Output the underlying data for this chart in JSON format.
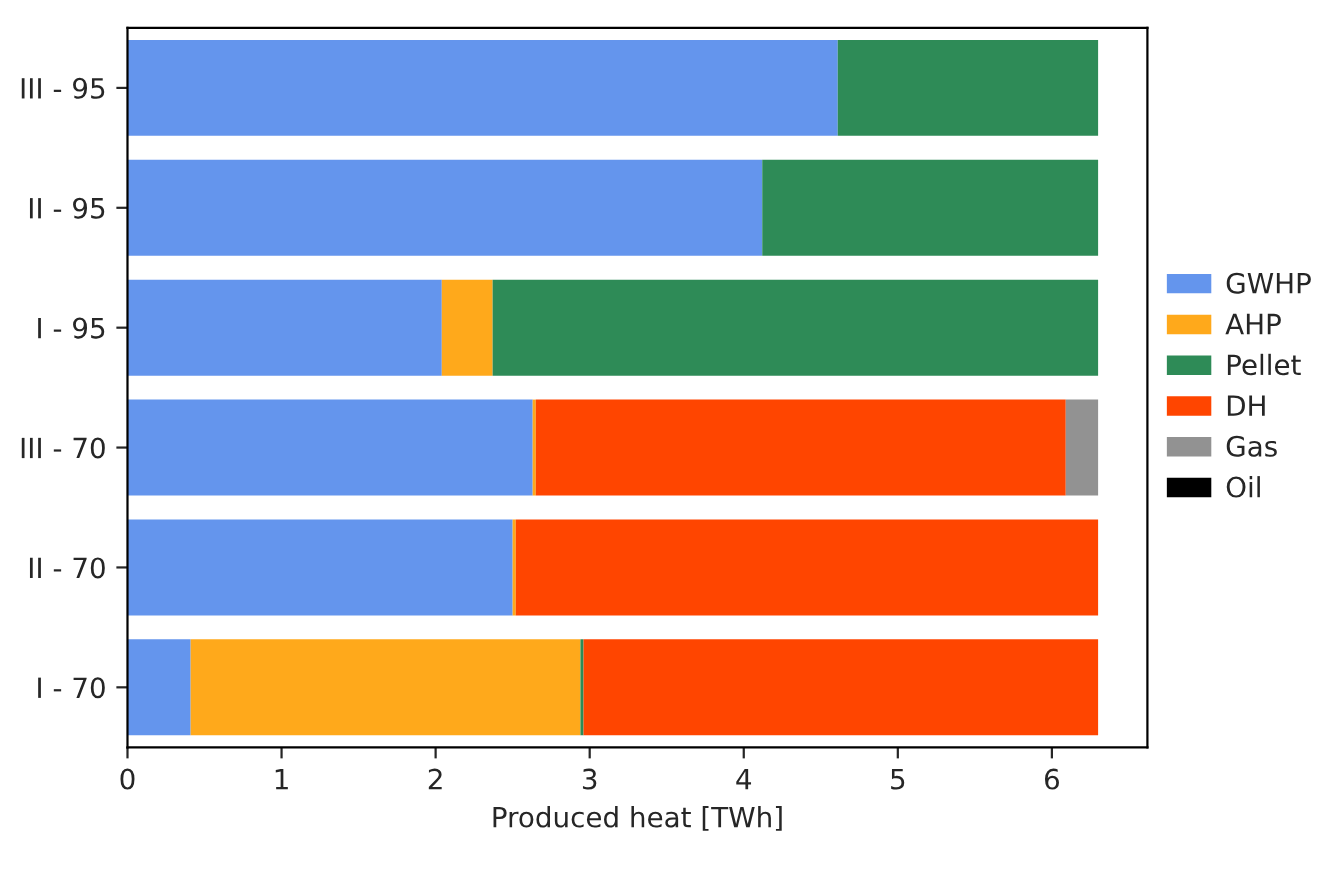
{
  "chart_data": {
    "type": "bar",
    "orientation": "horizontal",
    "stacked": true,
    "xlabel": "Produced heat [TWh]",
    "categories": [
      "III - 95",
      "II - 95",
      "I - 95",
      "III - 70",
      "II - 70",
      "I - 70"
    ],
    "series": [
      {
        "name": "GWHP",
        "color": "#6495ed",
        "values": [
          4.61,
          4.12,
          2.04,
          2.63,
          2.5,
          0.41
        ]
      },
      {
        "name": "AHP",
        "color": "#ffa91b",
        "values": [
          0,
          0,
          0.33,
          0.02,
          0.02,
          2.53
        ]
      },
      {
        "name": "Pellet",
        "color": "#2e8b57",
        "values": [
          1.69,
          2.18,
          3.93,
          0,
          0,
          0.02
        ]
      },
      {
        "name": "DH",
        "color": "#ff4500",
        "values": [
          0,
          0,
          0,
          3.44,
          3.78,
          3.34
        ]
      },
      {
        "name": "Gas",
        "color": "#929292",
        "values": [
          0,
          0,
          0,
          0.21,
          0,
          0
        ]
      },
      {
        "name": "Oil",
        "color": "#000000",
        "values": [
          0,
          0,
          0,
          0,
          0,
          0
        ]
      }
    ],
    "xlim": [
      0,
      6.62
    ],
    "xticks": [
      0,
      1,
      2,
      3,
      4,
      5,
      6
    ],
    "grid": false,
    "legend": "right"
  }
}
